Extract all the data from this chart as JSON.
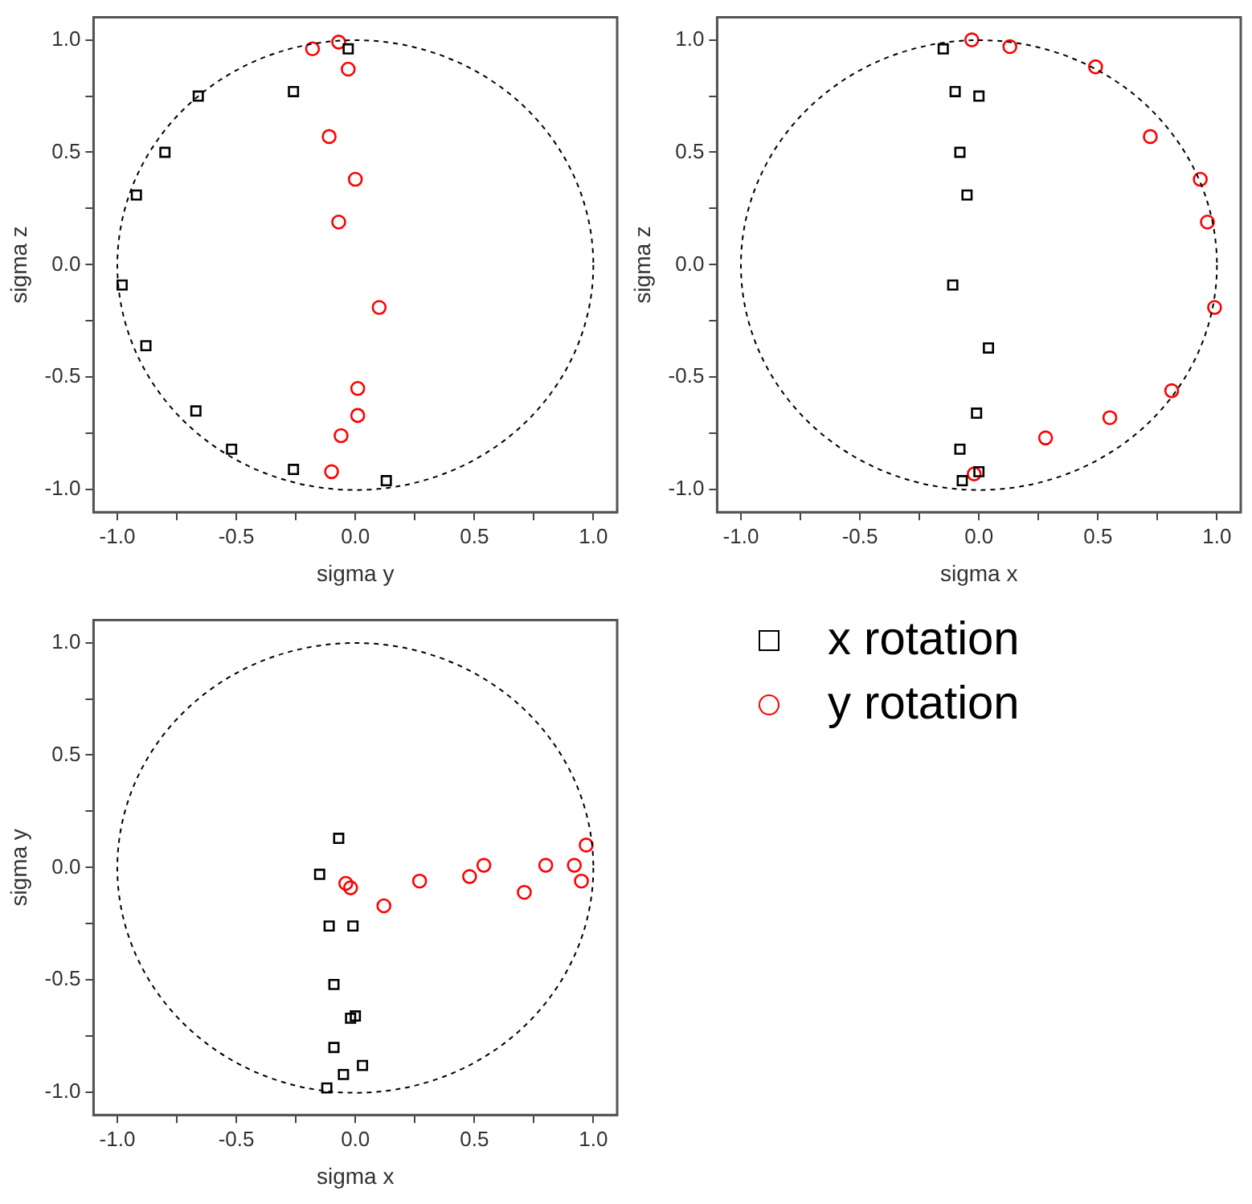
{
  "chart_data": [
    {
      "type": "scatter",
      "xlabel": "sigma y",
      "ylabel": "sigma z",
      "xlim": [
        -1.1,
        1.1
      ],
      "ylim": [
        -1.1,
        1.1
      ],
      "xticks": [
        {
          "value": -1,
          "label": "-1.0"
        },
        {
          "value": -0.75,
          "label": null
        },
        {
          "value": -0.5,
          "label": "-0.5"
        },
        {
          "value": -0.25,
          "label": null
        },
        {
          "value": 0,
          "label": "0.0"
        },
        {
          "value": 0.25,
          "label": null
        },
        {
          "value": 0.5,
          "label": "0.5"
        },
        {
          "value": 0.75,
          "label": null
        },
        {
          "value": 1,
          "label": "1.0"
        }
      ],
      "yticks": [
        {
          "value": -1,
          "label": "-1.0"
        },
        {
          "value": -0.75,
          "label": null
        },
        {
          "value": -0.5,
          "label": "-0.5"
        },
        {
          "value": -0.25,
          "label": null
        },
        {
          "value": 0,
          "label": "0.0"
        },
        {
          "value": 0.25,
          "label": null
        },
        {
          "value": 0.5,
          "label": "0.5"
        },
        {
          "value": 0.75,
          "label": null
        },
        {
          "value": 1,
          "label": "1.0"
        }
      ],
      "grid": false,
      "legend": false,
      "series": [
        {
          "type": "scatter",
          "color": "#000000",
          "marker": "square",
          "x": [
            -0.03,
            -0.26,
            -0.66,
            -0.8,
            -0.92,
            -0.98,
            -0.88,
            -0.67,
            -0.52,
            -0.26,
            0.13
          ],
          "values": [
            0.96,
            0.77,
            0.75,
            0.5,
            0.31,
            -0.09,
            -0.36,
            -0.65,
            -0.82,
            -0.91,
            -0.96
          ]
        },
        {
          "type": "scatter",
          "color": "#ff0000",
          "marker": "circle",
          "x": [
            -0.07,
            -0.18,
            -0.03,
            -0.11,
            0,
            -0.07,
            0.1,
            0.01,
            0.01,
            -0.06,
            -0.1
          ],
          "values": [
            0.99,
            0.96,
            0.87,
            0.57,
            0.38,
            0.19,
            -0.19,
            -0.55,
            -0.67,
            -0.76,
            -0.92
          ]
        }
      ]
    },
    {
      "type": "scatter",
      "xlabel": "sigma x",
      "ylabel": "sigma z",
      "xlim": [
        -1.1,
        1.1
      ],
      "ylim": [
        -1.1,
        1.1
      ],
      "xticks": [
        {
          "value": -1,
          "label": "-1.0"
        },
        {
          "value": -0.75,
          "label": null
        },
        {
          "value": -0.5,
          "label": "-0.5"
        },
        {
          "value": -0.25,
          "label": null
        },
        {
          "value": 0,
          "label": "0.0"
        },
        {
          "value": 0.25,
          "label": null
        },
        {
          "value": 0.5,
          "label": "0.5"
        },
        {
          "value": 0.75,
          "label": null
        },
        {
          "value": 1,
          "label": "1.0"
        }
      ],
      "yticks": [
        {
          "value": -1,
          "label": "-1.0"
        },
        {
          "value": -0.75,
          "label": null
        },
        {
          "value": -0.5,
          "label": "-0.5"
        },
        {
          "value": -0.25,
          "label": null
        },
        {
          "value": 0,
          "label": "0.0"
        },
        {
          "value": 0.25,
          "label": null
        },
        {
          "value": 0.5,
          "label": "0.5"
        },
        {
          "value": 0.75,
          "label": null
        },
        {
          "value": 1,
          "label": "1.0"
        }
      ],
      "grid": false,
      "legend": false,
      "series": [
        {
          "type": "scatter",
          "color": "#000000",
          "marker": "square",
          "x": [
            -0.15,
            -0.1,
            0,
            -0.08,
            -0.05,
            -0.11,
            0.04,
            -0.01,
            -0.08,
            0,
            -0.07
          ],
          "values": [
            0.96,
            0.77,
            0.75,
            0.5,
            0.31,
            -0.09,
            -0.37,
            -0.66,
            -0.82,
            -0.92,
            -0.96
          ]
        },
        {
          "type": "scatter",
          "color": "#ff0000",
          "marker": "circle",
          "x": [
            -0.03,
            0.13,
            0.49,
            0.72,
            0.93,
            0.96,
            0.99,
            0.81,
            0.55,
            0.28,
            -0.02
          ],
          "values": [
            1,
            0.97,
            0.88,
            0.57,
            0.38,
            0.19,
            -0.19,
            -0.56,
            -0.68,
            -0.77,
            -0.93
          ]
        }
      ]
    },
    {
      "type": "scatter",
      "xlabel": "sigma x",
      "ylabel": "sigma y",
      "xlim": [
        -1.1,
        1.1
      ],
      "ylim": [
        -1.1,
        1.1
      ],
      "xticks": [
        {
          "value": -1,
          "label": "-1.0"
        },
        {
          "value": -0.75,
          "label": null
        },
        {
          "value": -0.5,
          "label": "-0.5"
        },
        {
          "value": -0.25,
          "label": null
        },
        {
          "value": 0,
          "label": "0.0"
        },
        {
          "value": 0.25,
          "label": null
        },
        {
          "value": 0.5,
          "label": "0.5"
        },
        {
          "value": 0.75,
          "label": null
        },
        {
          "value": 1,
          "label": "1.0"
        }
      ],
      "yticks": [
        {
          "value": -1,
          "label": "-1.0"
        },
        {
          "value": -0.75,
          "label": null
        },
        {
          "value": -0.5,
          "label": "-0.5"
        },
        {
          "value": -0.25,
          "label": null
        },
        {
          "value": 0,
          "label": "0.0"
        },
        {
          "value": 0.25,
          "label": null
        },
        {
          "value": 0.5,
          "label": "0.5"
        },
        {
          "value": 0.75,
          "label": null
        },
        {
          "value": 1,
          "label": "1.0"
        }
      ],
      "grid": false,
      "legend": "right",
      "series": [
        {
          "type": "scatter",
          "name": "x rotation",
          "color": "#000000",
          "marker": "square",
          "x": [
            -0.07,
            -0.15,
            -0.11,
            -0.01,
            -0.09,
            0,
            -0.02,
            -0.09,
            0.03,
            -0.05,
            -0.12
          ],
          "values": [
            0.13,
            -0.03,
            -0.26,
            -0.26,
            -0.52,
            -0.66,
            -0.67,
            -0.8,
            -0.88,
            -0.92,
            -0.98
          ]
        },
        {
          "type": "scatter",
          "name": "y rotation",
          "color": "#ff0000",
          "marker": "circle",
          "x": [
            -0.04,
            -0.02,
            0.12,
            0.27,
            0.48,
            0.54,
            0.71,
            0.8,
            0.92,
            0.95,
            0.97
          ],
          "values": [
            -0.07,
            -0.09,
            -0.17,
            -0.06,
            -0.04,
            0.01,
            -0.11,
            0.01,
            0.01,
            -0.06,
            0.1
          ]
        }
      ]
    }
  ]
}
